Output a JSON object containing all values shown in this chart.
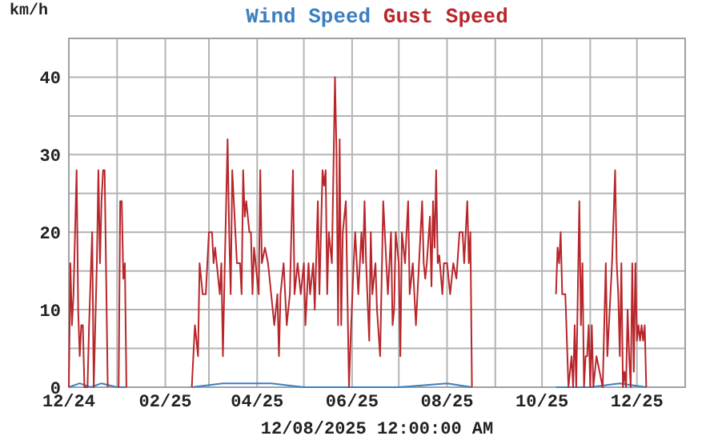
{
  "chart_data": {
    "type": "line",
    "xlabel": "12/08/2025 12:00:00 AM",
    "ylabel": "km/h",
    "legend": "top",
    "grid": true,
    "marker": "none",
    "line_style": "solid",
    "xlim": [
      "2024-12-01",
      "2026-01-01"
    ],
    "xticks": [
      {
        "value": "2024-12-01",
        "label": "12/24"
      },
      {
        "value": "2025-01-01",
        "label": null
      },
      {
        "value": "2025-02-01",
        "label": "02/25"
      },
      {
        "value": "2025-03-01",
        "label": null
      },
      {
        "value": "2025-04-01",
        "label": "04/25"
      },
      {
        "value": "2025-05-01",
        "label": null
      },
      {
        "value": "2025-06-01",
        "label": "06/25"
      },
      {
        "value": "2025-07-01",
        "label": null
      },
      {
        "value": "2025-08-01",
        "label": "08/25"
      },
      {
        "value": "2025-09-01",
        "label": null
      },
      {
        "value": "2025-10-01",
        "label": "10/25"
      },
      {
        "value": "2025-11-01",
        "label": null
      },
      {
        "value": "2025-12-01",
        "label": "12/25"
      },
      {
        "value": "2026-01-01",
        "label": null
      }
    ],
    "ylim": [
      0,
      45
    ],
    "yticks": [
      0,
      {
        "value": 5,
        "label": null
      },
      10,
      {
        "value": 15,
        "label": null
      },
      20,
      {
        "value": 25,
        "label": null
      },
      30,
      {
        "value": 35,
        "label": null
      },
      40,
      {
        "value": 45,
        "label": null
      }
    ],
    "series": [
      {
        "name": "Wind Speed",
        "color": "#3a7fc1",
        "x": [
          "2024-12-01",
          "2024-12-08",
          "2024-12-15",
          "2024-12-22",
          "2025-01-01",
          "2025-01-07",
          "2025-01-10",
          "2025-02-18",
          "2025-03-10",
          "2025-03-25",
          "2025-04-10",
          "2025-05-01",
          "2025-06-01",
          "2025-07-01",
          "2025-08-01",
          "2025-08-17",
          "2025-08-20",
          "2025-10-10",
          "2025-11-01",
          "2025-11-20",
          "2025-12-07"
        ],
        "values": [
          0,
          0.5,
          0,
          0.5,
          0,
          0,
          null,
          0,
          0.5,
          0.5,
          0.5,
          0,
          0,
          0,
          0.5,
          0,
          null,
          0,
          0,
          0.5,
          0
        ]
      },
      {
        "name": "Gust Speed",
        "color": "#b8262b",
        "x": [
          "2024-12-01",
          "2024-12-02",
          "2024-12-03",
          "2024-12-04",
          "2024-12-06",
          "2024-12-07",
          "2024-12-08",
          "2024-12-09",
          "2024-12-10",
          "2024-12-11",
          "2024-12-13",
          "2024-12-14",
          "2024-12-16",
          "2024-12-17",
          "2024-12-19",
          "2024-12-20",
          "2024-12-21",
          "2024-12-22",
          "2024-12-23",
          "2024-12-24",
          "2024-12-25",
          "2024-12-26",
          "2024-12-29",
          "2025-01-02",
          "2025-01-03",
          "2025-01-04",
          "2025-01-05",
          "2025-01-06",
          "2025-01-07",
          "2025-01-10",
          "2025-02-18",
          "2025-02-20",
          "2025-02-22",
          "2025-02-23",
          "2025-02-25",
          "2025-02-27",
          "2025-03-01",
          "2025-03-03",
          "2025-03-04",
          "2025-03-05",
          "2025-03-06",
          "2025-03-08",
          "2025-03-09",
          "2025-03-10",
          "2025-03-11",
          "2025-03-13",
          "2025-03-14",
          "2025-03-15",
          "2025-03-16",
          "2025-03-18",
          "2025-03-19",
          "2025-03-21",
          "2025-03-22",
          "2025-03-23",
          "2025-03-24",
          "2025-03-25",
          "2025-03-27",
          "2025-03-28",
          "2025-03-29",
          "2025-03-30",
          "2025-04-02",
          "2025-04-03",
          "2025-04-04",
          "2025-04-06",
          "2025-04-08",
          "2025-04-10",
          "2025-04-12",
          "2025-04-14",
          "2025-04-15",
          "2025-04-16",
          "2025-04-18",
          "2025-04-20",
          "2025-04-22",
          "2025-04-24",
          "2025-04-25",
          "2025-04-27",
          "2025-04-29",
          "2025-05-01",
          "2025-05-02",
          "2025-05-04",
          "2025-05-05",
          "2025-05-07",
          "2025-05-08",
          "2025-05-10",
          "2025-05-11",
          "2025-05-13",
          "2025-05-14",
          "2025-05-15",
          "2025-05-16",
          "2025-05-17",
          "2025-05-19",
          "2025-05-21",
          "2025-05-22",
          "2025-05-23",
          "2025-05-24",
          "2025-05-25",
          "2025-05-26",
          "2025-05-28",
          "2025-05-29",
          "2025-05-30",
          "2025-05-31",
          "2025-06-02",
          "2025-06-03",
          "2025-06-05",
          "2025-06-07",
          "2025-06-08",
          "2025-06-09",
          "2025-06-10",
          "2025-06-12",
          "2025-06-13",
          "2025-06-14",
          "2025-06-16",
          "2025-06-17",
          "2025-06-19",
          "2025-06-21",
          "2025-06-22",
          "2025-06-23",
          "2025-06-24",
          "2025-06-26",
          "2025-06-27",
          "2025-06-28",
          "2025-06-29",
          "2025-07-01",
          "2025-07-02",
          "2025-07-03",
          "2025-07-05",
          "2025-07-07",
          "2025-07-08",
          "2025-07-10",
          "2025-07-12",
          "2025-07-14",
          "2025-07-16",
          "2025-07-17",
          "2025-07-18",
          "2025-07-19",
          "2025-07-21",
          "2025-07-22",
          "2025-07-23",
          "2025-07-24",
          "2025-07-25",
          "2025-07-26",
          "2025-07-27",
          "2025-07-29",
          "2025-07-30",
          "2025-08-01",
          "2025-08-03",
          "2025-08-05",
          "2025-08-07",
          "2025-08-09",
          "2025-08-11",
          "2025-08-12",
          "2025-08-13",
          "2025-08-14",
          "2025-08-15",
          "2025-08-16",
          "2025-08-17",
          "2025-08-20",
          "2025-10-10",
          "2025-10-11",
          "2025-10-12",
          "2025-10-13",
          "2025-10-14",
          "2025-10-16",
          "2025-10-18",
          "2025-10-20",
          "2025-10-21",
          "2025-10-22",
          "2025-10-23",
          "2025-10-25",
          "2025-10-26",
          "2025-10-27",
          "2025-10-28",
          "2025-10-29",
          "2025-10-30",
          "2025-10-31",
          "2025-11-01",
          "2025-11-02",
          "2025-11-03",
          "2025-11-05",
          "2025-11-07",
          "2025-11-09",
          "2025-11-11",
          "2025-11-12",
          "2025-11-14",
          "2025-11-15",
          "2025-11-17",
          "2025-11-18",
          "2025-11-19",
          "2025-11-20",
          "2025-11-21",
          "2025-11-22",
          "2025-11-23",
          "2025-11-24",
          "2025-11-25",
          "2025-11-26",
          "2025-11-27",
          "2025-11-28",
          "2025-11-29",
          "2025-11-30",
          "2025-12-01",
          "2025-12-02",
          "2025-12-03",
          "2025-12-04",
          "2025-12-05",
          "2025-12-06",
          "2025-12-07"
        ],
        "values": [
          0,
          16,
          8,
          12,
          28,
          10,
          4,
          8,
          8,
          0,
          0,
          8,
          20,
          0,
          16,
          28,
          16,
          24,
          28,
          28,
          14,
          0,
          null,
          0,
          24,
          24,
          14,
          16,
          0,
          null,
          0,
          8,
          4,
          16,
          12,
          12,
          20,
          20,
          16,
          18,
          16,
          12,
          16,
          4,
          14,
          32,
          20,
          12,
          28,
          20,
          16,
          16,
          12,
          28,
          22,
          24,
          20,
          20,
          12,
          18,
          12,
          28,
          16,
          18,
          16,
          12,
          8,
          12,
          4,
          12,
          16,
          8,
          12,
          28,
          12,
          16,
          12,
          16,
          8,
          16,
          12,
          16,
          10,
          24,
          12,
          28,
          26,
          28,
          12,
          20,
          16,
          40,
          30,
          8,
          32,
          8,
          20,
          24,
          12,
          0,
          6,
          16,
          20,
          12,
          20,
          16,
          24,
          16,
          6,
          20,
          12,
          16,
          10,
          4,
          24,
          20,
          16,
          12,
          20,
          8,
          10,
          20,
          16,
          4,
          20,
          16,
          24,
          12,
          16,
          8,
          16,
          24,
          16,
          14,
          16,
          22,
          13,
          24,
          18,
          28,
          16,
          17,
          12,
          16,
          16,
          12,
          16,
          14,
          20,
          20,
          16,
          20,
          24,
          16,
          20,
          0,
          null,
          12,
          18,
          16,
          20,
          12,
          12,
          0,
          4,
          0,
          8,
          0,
          24,
          8,
          16,
          0,
          4,
          4,
          8,
          0,
          8,
          0,
          4,
          2,
          0,
          16,
          4,
          12,
          16,
          28,
          16,
          12,
          4,
          16,
          0,
          2,
          0,
          10,
          4,
          0,
          16,
          2,
          16,
          6,
          8,
          6,
          8,
          6,
          8,
          0
        ]
      }
    ]
  }
}
